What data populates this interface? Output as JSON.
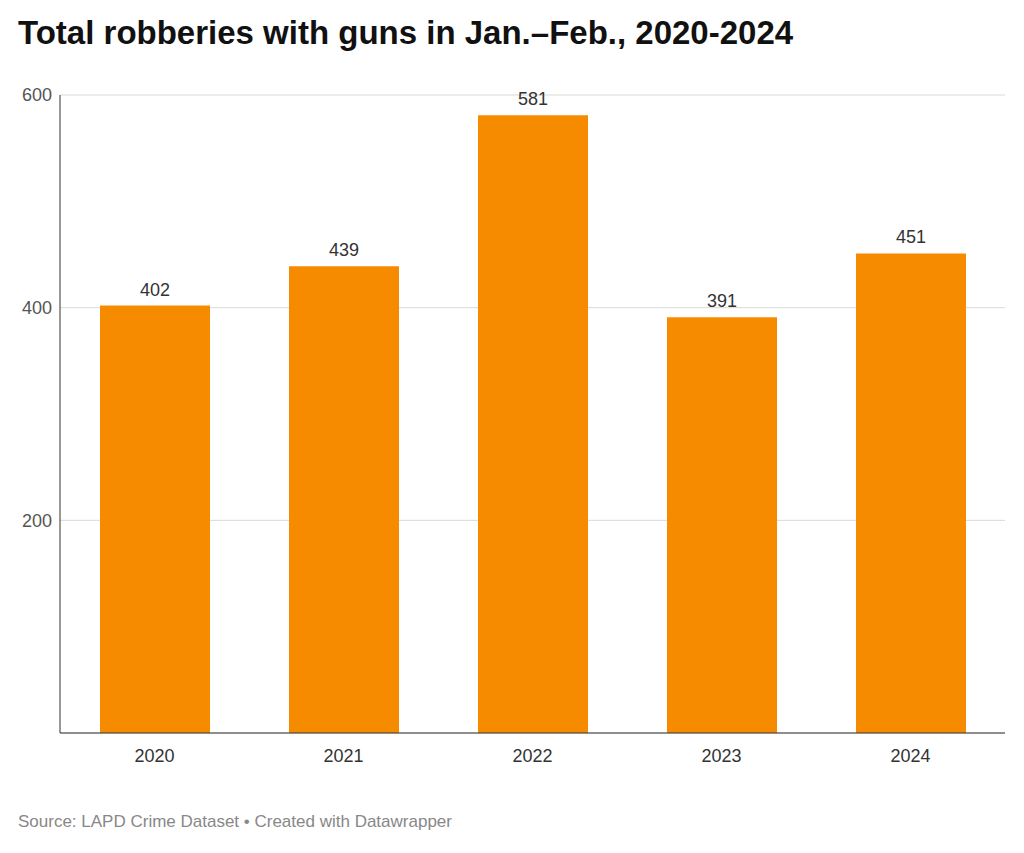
{
  "chart_data": {
    "type": "bar",
    "title": "Total robberies with guns in Jan.–Feb., 2020-2024",
    "source": "Source: LAPD Crime Dataset • Created with Datawrapper",
    "categories": [
      "2020",
      "2021",
      "2022",
      "2023",
      "2024"
    ],
    "values": [
      402,
      439,
      581,
      391,
      451
    ],
    "color": "#f68b00",
    "ylim": [
      0,
      600
    ],
    "yticks": [
      200,
      400,
      600
    ],
    "grid": true,
    "data_labels": true
  }
}
